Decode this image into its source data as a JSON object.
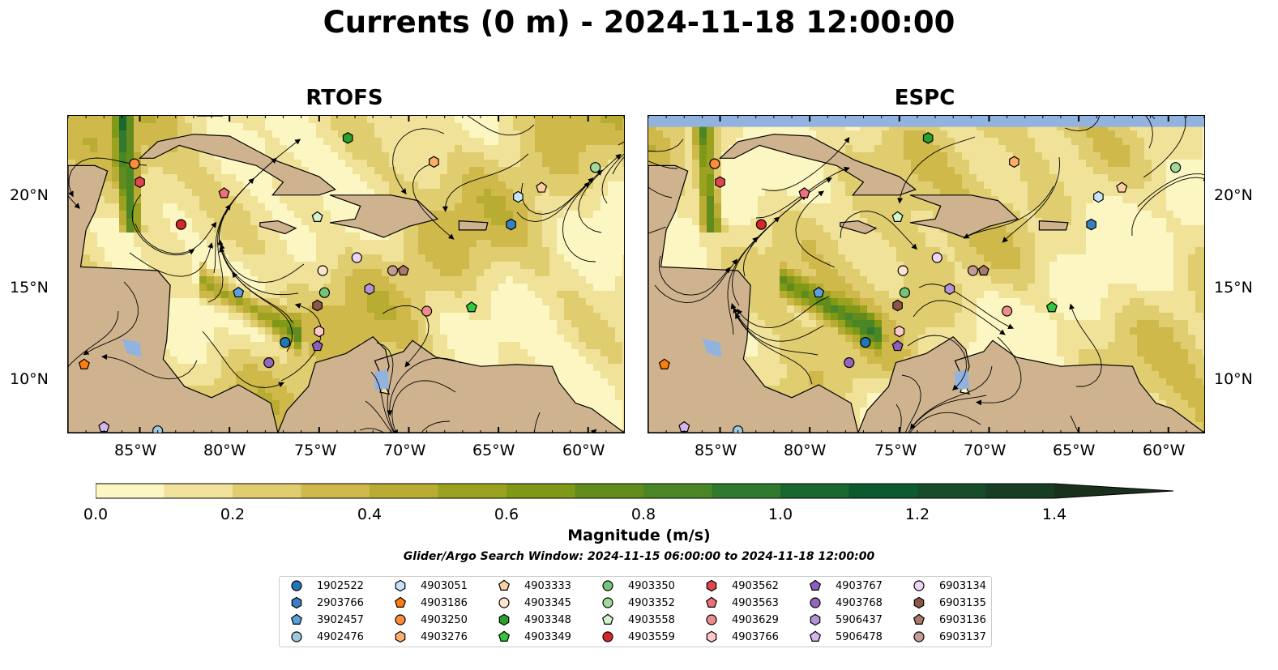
{
  "title": "Currents (0 m) - 2024-11-18 12:00:00",
  "panels": [
    {
      "title": "RTOFS"
    },
    {
      "title": "ESPC"
    }
  ],
  "axes": {
    "lon_ticks": [
      "85°W",
      "80°W",
      "75°W",
      "70°W",
      "65°W",
      "60°W"
    ],
    "lat_ticks": [
      "20°N",
      "15°N",
      "10°N"
    ],
    "lon_range": [
      -89,
      -58
    ],
    "lat_range": [
      7,
      24.2
    ]
  },
  "colorbar": {
    "label": "Magnitude (m/s)",
    "ticks": [
      "0.0",
      "0.2",
      "0.4",
      "0.6",
      "0.8",
      "1.0",
      "1.2",
      "1.4"
    ],
    "min": 0.0,
    "max": 1.5,
    "extend": "max",
    "colors": [
      "#fcf6c2",
      "#f0e299",
      "#e0cd6f",
      "#cfb94b",
      "#b8ac32",
      "#9aa21f",
      "#7f9816",
      "#618b1d",
      "#4a8526",
      "#2f7a2f",
      "#17692f",
      "#0c5a2d",
      "#164c2a",
      "#173e24",
      "#18301c"
    ]
  },
  "search_window": "Glider/Argo Search Window: 2024-11-15 06:00:00 to 2024-11-18 12:00:00",
  "colors": {
    "land": "#cfb38f",
    "lake": "#92b3e0",
    "missing": "#92b3e0"
  },
  "floats": [
    {
      "id": "1902522",
      "marker": "circle",
      "color": "#1f77b4",
      "lon": -76.9,
      "lat": 11.9
    },
    {
      "id": "2903766",
      "marker": "hexagon",
      "color": "#3a80c0",
      "lon": -64.3,
      "lat": 18.3
    },
    {
      "id": "3902457",
      "marker": "pentagon",
      "color": "#5aa0e0",
      "lon": -79.5,
      "lat": 14.6
    },
    {
      "id": "4902476",
      "marker": "circle",
      "color": "#9ecae1",
      "lon": -84.0,
      "lat": 7.1
    },
    {
      "id": "4903051",
      "marker": "hexagon",
      "color": "#c6e3f7",
      "lon": -63.9,
      "lat": 19.8
    },
    {
      "id": "4903186",
      "marker": "pentagon",
      "color": "#ff7f0e",
      "lon": -88.1,
      "lat": 10.7
    },
    {
      "id": "4903250",
      "marker": "circle",
      "color": "#fd8d3c",
      "lon": -85.3,
      "lat": 21.6
    },
    {
      "id": "4903276",
      "marker": "hexagon",
      "color": "#fdae6b",
      "lon": -68.6,
      "lat": 21.7
    },
    {
      "id": "4903333",
      "marker": "pentagon",
      "color": "#fdd0a2",
      "lon": -62.6,
      "lat": 20.3
    },
    {
      "id": "4903345",
      "marker": "circle",
      "color": "#fee6ce",
      "lon": -74.8,
      "lat": 15.8
    },
    {
      "id": "4903348",
      "marker": "hexagon",
      "color": "#2ca02c",
      "lon": -73.4,
      "lat": 23.0
    },
    {
      "id": "4903349",
      "marker": "pentagon",
      "color": "#31c840",
      "lon": -66.5,
      "lat": 13.8
    },
    {
      "id": "4903350",
      "marker": "circle",
      "color": "#74c476",
      "lon": -74.7,
      "lat": 14.6
    },
    {
      "id": "4903352",
      "marker": "circle",
      "color": "#a1d99b",
      "lon": -59.6,
      "lat": 21.4
    },
    {
      "id": "4903558",
      "marker": "pentagon",
      "color": "#d2f5cc",
      "lon": -75.1,
      "lat": 18.7
    },
    {
      "id": "4903559",
      "marker": "circle",
      "color": "#d62728",
      "lon": -82.7,
      "lat": 18.3
    },
    {
      "id": "4903562",
      "marker": "hexagon",
      "color": "#e0444f",
      "lon": -85.0,
      "lat": 20.6
    },
    {
      "id": "4903563",
      "marker": "pentagon",
      "color": "#ef6f7a",
      "lon": -80.3,
      "lat": 20.0
    },
    {
      "id": "4903629",
      "marker": "circle",
      "color": "#f08c8c",
      "lon": -69.0,
      "lat": 13.6
    },
    {
      "id": "4903766",
      "marker": "hexagon",
      "color": "#ffc7c7",
      "lon": -75.0,
      "lat": 12.5
    },
    {
      "id": "4903767",
      "marker": "pentagon",
      "color": "#8a5fbf",
      "lon": -75.1,
      "lat": 11.7
    },
    {
      "id": "4903768",
      "marker": "circle",
      "color": "#9467bd",
      "lon": -77.8,
      "lat": 10.8
    },
    {
      "id": "5906437",
      "marker": "hexagon",
      "color": "#b294d6",
      "lon": -72.2,
      "lat": 14.8
    },
    {
      "id": "5906478",
      "marker": "pentagon",
      "color": "#d2b8ef",
      "lon": -87.0,
      "lat": 7.3
    },
    {
      "id": "6903134",
      "marker": "circle",
      "color": "#ecd5f7",
      "lon": -72.9,
      "lat": 16.5
    },
    {
      "id": "6903135",
      "marker": "hexagon",
      "color": "#8c564b",
      "lon": -75.1,
      "lat": 13.9
    },
    {
      "id": "6903136",
      "marker": "pentagon",
      "color": "#a9796a",
      "lon": -70.3,
      "lat": 15.8
    },
    {
      "id": "6903137",
      "marker": "circle",
      "color": "#c49c94",
      "lon": -70.9,
      "lat": 15.8
    }
  ]
}
